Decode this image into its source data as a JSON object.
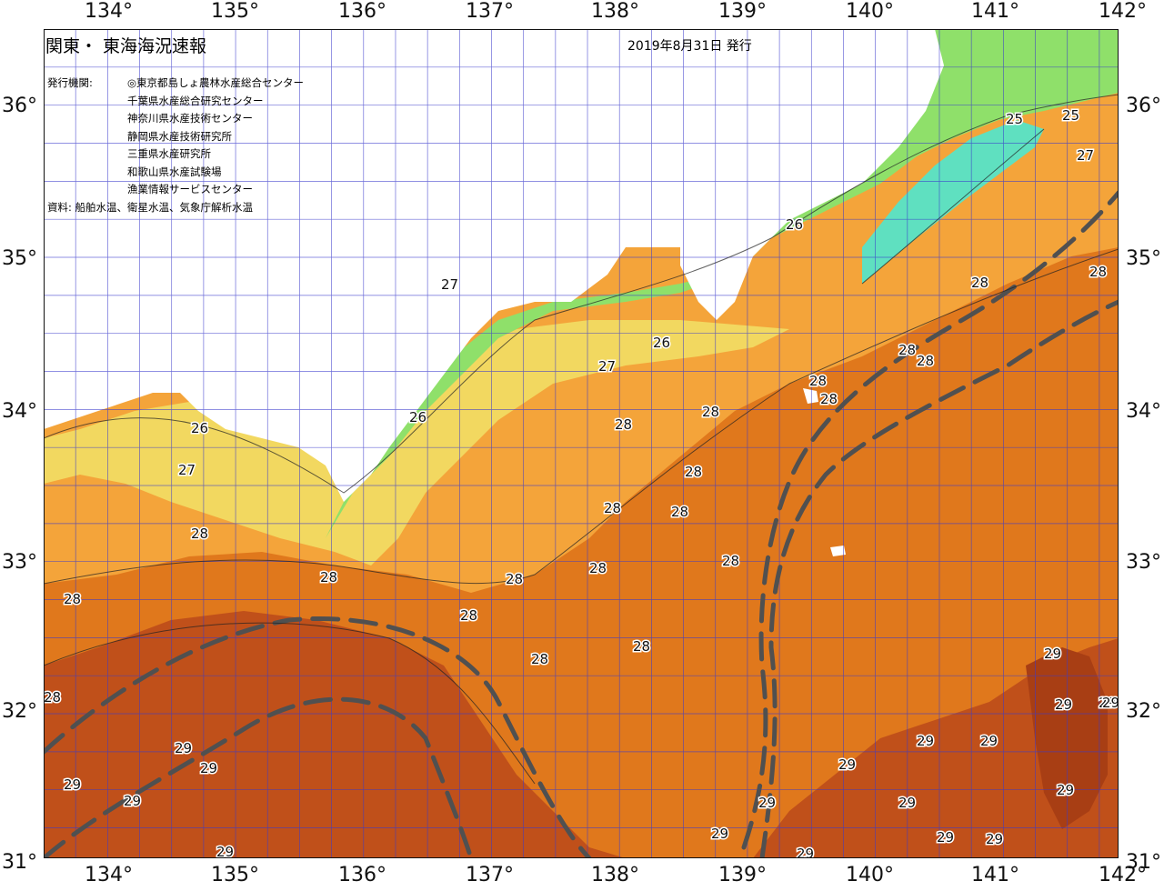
{
  "header": {
    "title": "関東・ 東海海況速報",
    "issue_date": "2019年8月31日 発行"
  },
  "issuers": {
    "label": "発行機関:",
    "orgs": [
      "◎東京都島しょ農林水産総合センター",
      "千葉県水産総合研究センター",
      "神奈川県水産技術センター",
      "静岡県水産技術研究所",
      "三重県水産研究所",
      "和歌山県水産試験場",
      "漁業情報サービスセンター"
    ]
  },
  "sources": "資料: 船舶水温、衛星水温、気象庁解析水温",
  "axes": {
    "lon_ticks": [
      "134°",
      "135°",
      "136°",
      "137°",
      "138°",
      "139°",
      "140°",
      "141°",
      "142°"
    ],
    "lat_ticks": [
      "36°",
      "35°",
      "34°",
      "33°",
      "32°",
      "31°"
    ]
  },
  "contour_labels": [
    "25",
    "25",
    "27",
    "26",
    "28",
    "28",
    "27",
    "26",
    "27",
    "26",
    "26",
    "27",
    "28",
    "28",
    "28",
    "28",
    "28",
    "28",
    "28",
    "28",
    "28",
    "28",
    "28",
    "28",
    "28",
    "28",
    "28",
    "28",
    "28",
    "28",
    "29",
    "29",
    "29",
    "29",
    "29",
    "29",
    "29",
    "29",
    "29",
    "29",
    "29",
    "29",
    "29",
    "29",
    "29",
    "29",
    "29",
    "28",
    "29",
    "29"
  ],
  "colors": {
    "land": "#ffffff",
    "sst_25": "#5fe0c0",
    "sst_26": "#8fe06a",
    "sst_27": "#f2d860",
    "sst_28_low": "#f4a43a",
    "sst_28_high": "#e0781c",
    "sst_29": "#c0501a",
    "grid": "#3a3acc",
    "kuroshio_path": "#505050"
  }
}
